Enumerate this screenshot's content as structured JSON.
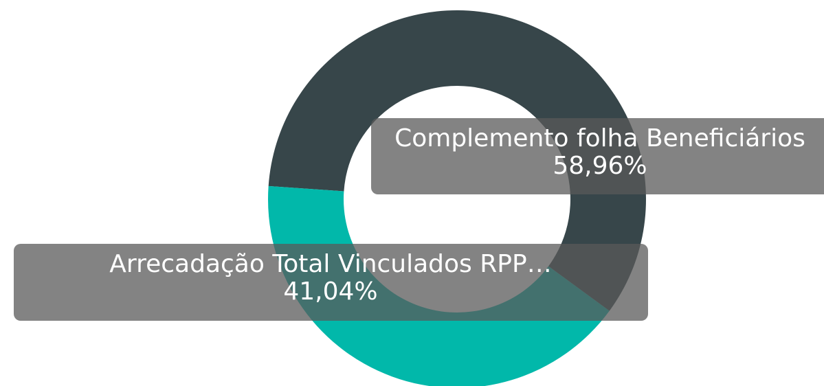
{
  "chart_data": {
    "type": "donut",
    "categories": [
      "Complemento folha Beneficiários",
      "Arrecadação Total Vinculados RPP…"
    ],
    "values": [
      58.96,
      41.04
    ],
    "value_labels": [
      "58,96%",
      "41,04%"
    ],
    "colors": [
      "#37464a",
      "#01b8aa"
    ]
  }
}
